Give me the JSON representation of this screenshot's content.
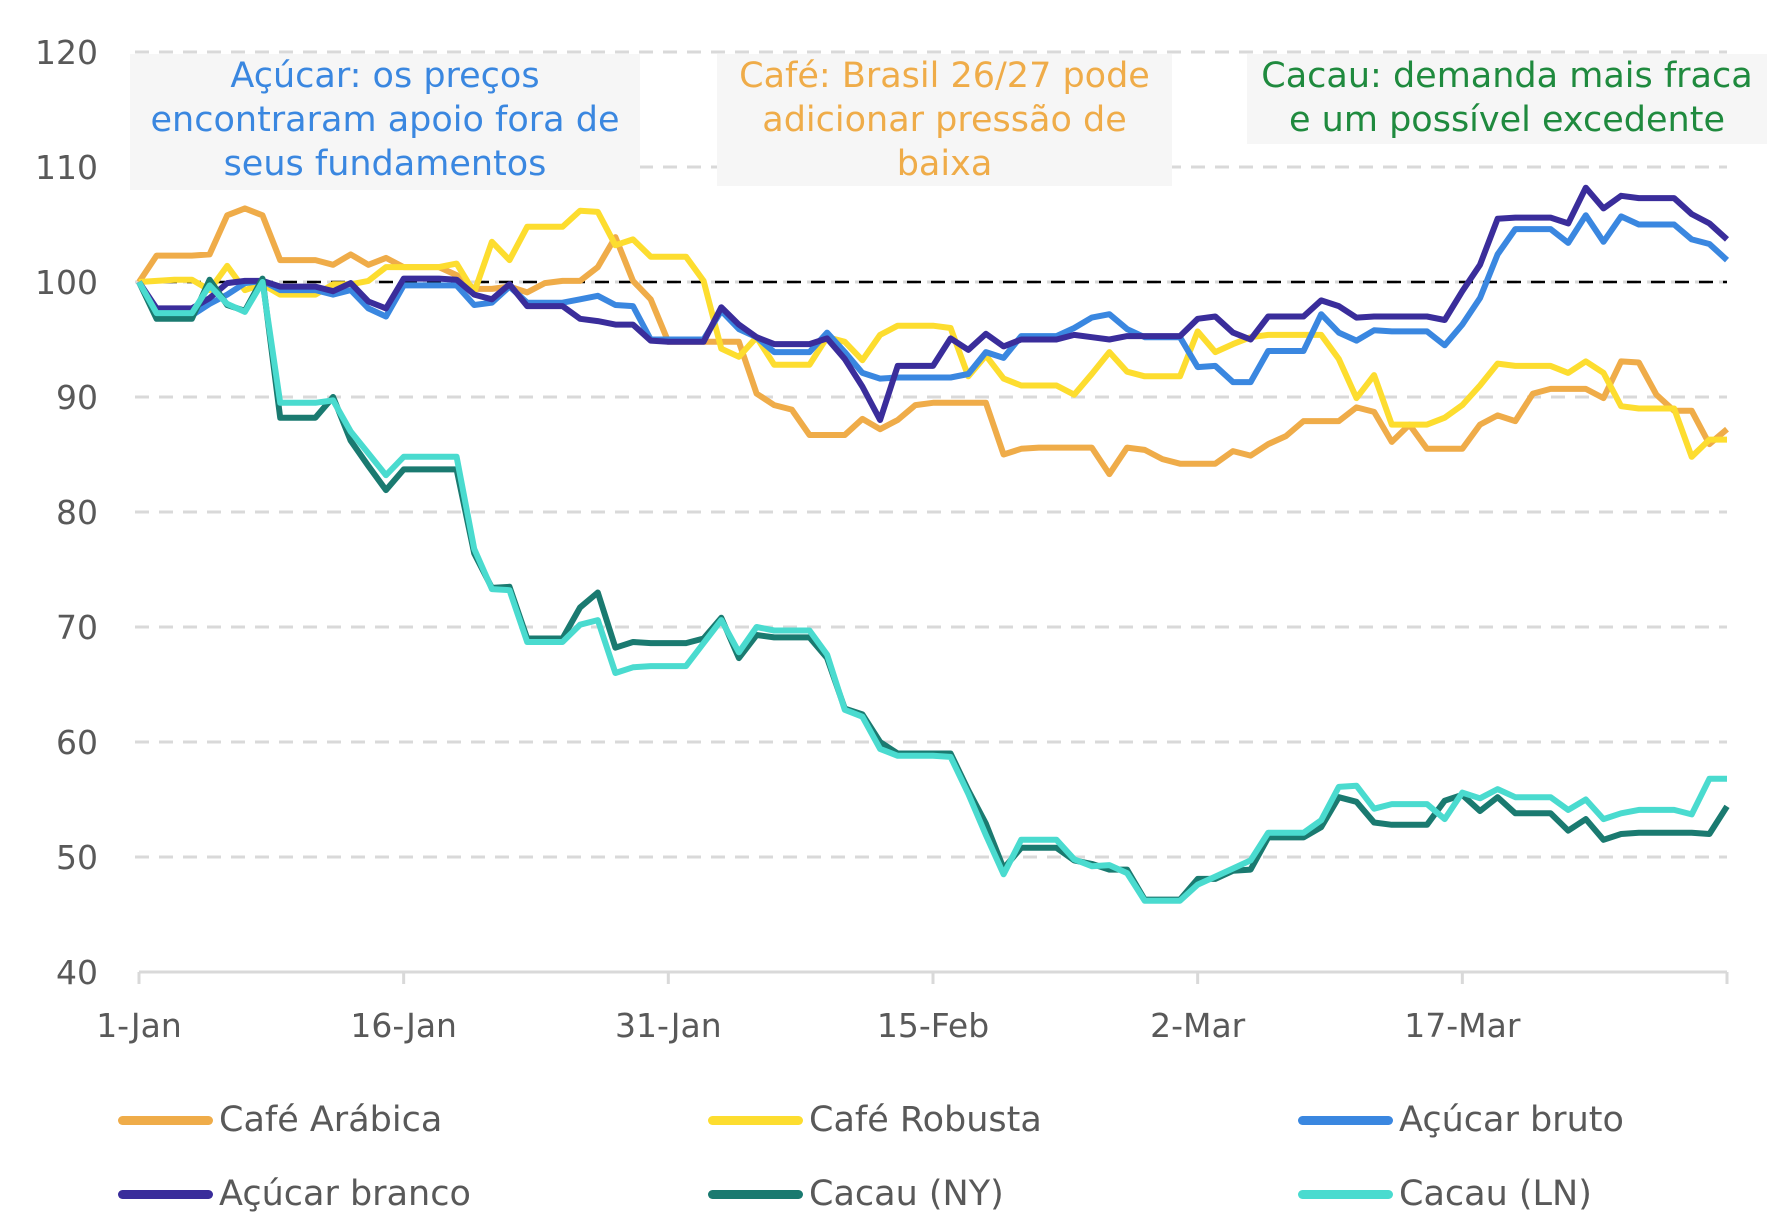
{
  "chart_data": {
    "type": "line",
    "title": "",
    "xlabel": "",
    "ylabel": "",
    "ylim": [
      40,
      120
    ],
    "yticks": [
      40,
      50,
      60,
      70,
      80,
      90,
      100,
      110,
      120
    ],
    "xlim_days": [
      0,
      90
    ],
    "xticks": [
      {
        "day": 0,
        "label": "1-Jan"
      },
      {
        "day": 15,
        "label": "16-Jan"
      },
      {
        "day": 30,
        "label": "31-Jan"
      },
      {
        "day": 45,
        "label": "15-Feb"
      },
      {
        "day": 60,
        "label": "2-Mar"
      },
      {
        "day": 75,
        "label": "17-Mar"
      },
      {
        "day": 90,
        "label": ""
      }
    ],
    "grid": "horizontal-dashed",
    "reference_line": {
      "y": 100,
      "style": "dashed",
      "color": "#000000"
    },
    "legend_position": "bottom",
    "x_days": [
      0,
      1,
      2,
      3,
      4,
      5,
      6,
      7,
      8,
      9,
      10,
      11,
      12,
      13,
      14,
      15,
      16,
      17,
      18,
      19,
      20,
      21,
      22,
      23,
      24,
      25,
      26,
      27,
      28,
      29,
      30,
      31,
      32,
      33,
      34,
      35,
      36,
      37,
      38,
      39,
      40,
      41,
      42,
      43,
      44,
      45,
      46,
      47,
      48,
      49,
      50,
      51,
      52,
      53,
      54,
      55,
      56,
      57,
      58,
      59,
      60,
      61,
      62,
      63,
      64,
      65,
      66,
      67,
      68,
      69,
      70,
      71,
      72,
      73,
      74,
      75,
      76,
      77,
      78,
      79,
      80,
      81,
      82,
      83,
      84,
      85,
      86,
      87,
      88,
      89,
      90
    ],
    "series": [
      {
        "name": "Café Arábica",
        "color": "#EFAC49",
        "values": [
          100,
          102.3,
          102.3,
          102.3,
          102.4,
          105.8,
          106.4,
          105.8,
          101.9,
          101.9,
          101.9,
          101.5,
          102.4,
          101.5,
          102.1,
          101.3,
          101.3,
          101.3,
          100.6,
          99.4,
          99.4,
          99.6,
          99.1,
          99.9,
          100.1,
          100.1,
          101.3,
          103.9,
          100.1,
          98.5,
          94.8,
          94.8,
          94.8,
          94.8,
          94.8,
          90.3,
          89.3,
          88.9,
          86.7,
          86.7,
          86.7,
          88.1,
          87.2,
          88,
          89.3,
          89.5,
          89.5,
          89.5,
          89.5,
          85,
          85.5,
          85.6,
          85.6,
          85.6,
          85.6,
          83.3,
          85.6,
          85.4,
          84.6,
          84.2,
          84.2,
          84.2,
          85.3,
          84.9,
          85.9,
          86.6,
          87.9,
          87.9,
          87.9,
          89.1,
          88.7,
          86.1,
          87.6,
          85.5,
          85.5,
          85.5,
          87.6,
          88.4,
          87.9,
          90.3,
          90.7,
          90.7,
          90.7,
          89.9,
          93.1,
          93,
          90.2,
          88.8,
          88.8,
          85.9,
          87.2
        ],
        "note": "approximate"
      },
      {
        "name": "Café Robusta",
        "color": "#FDDD2F",
        "values": [
          100,
          100.1,
          100.2,
          100.2,
          99.3,
          101.4,
          99.3,
          99.8,
          98.9,
          98.9,
          98.9,
          99.8,
          99.8,
          100.1,
          101.3,
          101.3,
          101.3,
          101.3,
          101.6,
          99.1,
          103.5,
          101.9,
          104.8,
          104.8,
          104.8,
          106.2,
          106.1,
          103.2,
          103.7,
          102.2,
          102.2,
          102.2,
          100.1,
          94.2,
          93.5,
          95.2,
          92.8,
          92.8,
          92.8,
          95.2,
          94.8,
          93.2,
          95.4,
          96.2,
          96.2,
          96.2,
          96,
          91.8,
          93.6,
          91.6,
          91,
          91,
          91,
          90.2,
          92,
          93.9,
          92.2,
          91.8,
          91.8,
          91.8,
          95.7,
          93.9,
          94.6,
          95.2,
          95.4,
          95.4,
          95.4,
          95.4,
          93.3,
          89.9,
          91.9,
          87.6,
          87.6,
          87.6,
          88.2,
          89.3,
          91,
          92.9,
          92.7,
          92.7,
          92.7,
          92.1,
          93.1,
          92.1,
          89.2,
          89,
          89,
          89,
          84.8,
          86.3,
          86.3
        ]
      },
      {
        "name": "Açúcar bruto",
        "color": "#3A87E0",
        "values": [
          100,
          97.1,
          97.1,
          97.1,
          98.1,
          98.9,
          99.9,
          100.1,
          99.3,
          99.3,
          99.3,
          98.9,
          99.3,
          97.7,
          97,
          99.7,
          99.7,
          99.7,
          99.7,
          98,
          98.2,
          99.6,
          98.2,
          98.2,
          98.2,
          98.5,
          98.8,
          98,
          97.9,
          95,
          95,
          95,
          95,
          97.5,
          95.9,
          95.2,
          93.9,
          93.9,
          93.9,
          95.6,
          93.9,
          92.1,
          91.6,
          91.7,
          91.7,
          91.7,
          91.7,
          92,
          93.9,
          93.4,
          95.3,
          95.3,
          95.3,
          96,
          96.9,
          97.2,
          95.9,
          95.2,
          95.2,
          95.2,
          92.6,
          92.7,
          91.3,
          91.3,
          94,
          94,
          94,
          97.2,
          95.6,
          94.9,
          95.8,
          95.7,
          95.7,
          95.7,
          94.5,
          96.3,
          98.6,
          102.4,
          104.6,
          104.6,
          104.6,
          103.4,
          105.8,
          103.5,
          105.7,
          105,
          105,
          105,
          103.7,
          103.3,
          101.9
        ]
      },
      {
        "name": "Açúcar branco",
        "color": "#3A2D9B",
        "values": [
          100,
          97.7,
          97.7,
          97.7,
          98.6,
          99.9,
          100.1,
          100.1,
          99.6,
          99.6,
          99.6,
          99.2,
          99.9,
          98.3,
          97.7,
          100.3,
          100.3,
          100.3,
          100.2,
          98.9,
          98.5,
          99.8,
          97.9,
          97.9,
          97.9,
          96.8,
          96.6,
          96.3,
          96.3,
          94.9,
          94.8,
          94.8,
          94.8,
          97.8,
          96.3,
          95.2,
          94.6,
          94.6,
          94.6,
          95.1,
          93.3,
          90.9,
          88,
          92.7,
          92.7,
          92.7,
          95.1,
          94.1,
          95.5,
          94.4,
          95,
          95,
          95,
          95.4,
          95.2,
          95,
          95.3,
          95.3,
          95.3,
          95.3,
          96.8,
          97,
          95.6,
          95,
          97,
          97,
          97,
          98.4,
          97.9,
          96.9,
          97,
          97,
          97,
          97,
          96.7,
          99.2,
          101.5,
          105.5,
          105.6,
          105.6,
          105.6,
          105.1,
          108.2,
          106.4,
          107.5,
          107.3,
          107.3,
          107.3,
          105.9,
          105.1,
          103.7
        ]
      },
      {
        "name": "Cacau (NY)",
        "color": "#1A7A70",
        "values": [
          100,
          96.8,
          96.8,
          96.8,
          100.2,
          98,
          97.5,
          100.3,
          88.2,
          88.2,
          88.2,
          90,
          86.2,
          84,
          81.9,
          83.7,
          83.7,
          83.7,
          83.7,
          76.4,
          73.4,
          73.5,
          69,
          69,
          69,
          71.7,
          73,
          68.2,
          68.7,
          68.6,
          68.6,
          68.6,
          69,
          70.8,
          67.3,
          69.3,
          69.1,
          69.1,
          69.1,
          67.3,
          62.9,
          62.4,
          60,
          59,
          59,
          59,
          59,
          55.8,
          52.9,
          49,
          50.8,
          50.8,
          50.8,
          49.7,
          49.4,
          48.9,
          48.9,
          46.3,
          46.3,
          46.3,
          48.1,
          48.1,
          48.8,
          48.9,
          51.7,
          51.7,
          51.7,
          52.6,
          55.2,
          54.8,
          53,
          52.8,
          52.8,
          52.8,
          54.9,
          55.4,
          54,
          55.2,
          53.8,
          53.8,
          53.8,
          52.3,
          53.3,
          51.5,
          52,
          52.1,
          52.1,
          52.1,
          52.1,
          52,
          54.4
        ]
      },
      {
        "name": "Cacau (LN)",
        "color": "#4ADBCF",
        "values": [
          100,
          97.3,
          97.3,
          97.3,
          99.7,
          98.1,
          97.4,
          100,
          89.5,
          89.5,
          89.5,
          89.7,
          87,
          85.1,
          83.2,
          84.8,
          84.8,
          84.8,
          84.8,
          76.8,
          73.3,
          73.2,
          68.7,
          68.7,
          68.7,
          70.2,
          70.6,
          66,
          66.5,
          66.6,
          66.6,
          66.6,
          68.6,
          70.6,
          67.8,
          70,
          69.7,
          69.7,
          69.7,
          67.6,
          62.8,
          62.2,
          59.4,
          58.8,
          58.8,
          58.8,
          58.7,
          55.5,
          51.9,
          48.5,
          51.5,
          51.5,
          51.5,
          49.8,
          49.2,
          49.3,
          48.6,
          46.2,
          46.2,
          46.2,
          47.6,
          48.3,
          49,
          49.7,
          52.1,
          52.1,
          52.1,
          53.2,
          56.1,
          56.2,
          54.2,
          54.6,
          54.6,
          54.6,
          53.3,
          55.6,
          55.1,
          55.9,
          55.2,
          55.2,
          55.2,
          54.1,
          55,
          53.3,
          53.8,
          54.1,
          54.1,
          54.1,
          53.7,
          56.8,
          56.8
        ]
      }
    ],
    "annotations": [
      {
        "text_lines": [
          "Açúcar: os preços",
          "encontraram apoio fora de",
          "seus fundamentos"
        ],
        "color": "#3A87E0"
      },
      {
        "text_lines": [
          "Café: Brasil 26/27 pode",
          "adicionar pressão de",
          "baixa"
        ],
        "color": "#EFAC49"
      },
      {
        "text_lines": [
          "Cacau: demanda mais fraca",
          "e um possível excedente"
        ],
        "color": "#1F8A3E"
      }
    ]
  },
  "legend": [
    {
      "label": "Café Arábica",
      "color": "#EFAC49"
    },
    {
      "label": "Café Robusta",
      "color": "#FDDD2F"
    },
    {
      "label": "Açúcar bruto",
      "color": "#3A87E0"
    },
    {
      "label": "Açúcar branco",
      "color": "#3A2D9B"
    },
    {
      "label": "Cacau (NY)",
      "color": "#1A7A70"
    },
    {
      "label": "Cacau (LN)",
      "color": "#4ADBCF"
    }
  ]
}
